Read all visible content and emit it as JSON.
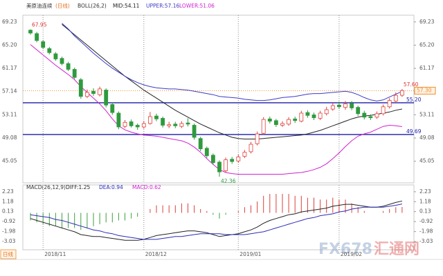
{
  "chart_data": [
    {
      "type": "candlestick",
      "title": "美原油连续",
      "period": "(日线)",
      "indicator": "BOLL(26,2)",
      "legend_labels": [
        "MID:54.11",
        "UPPER:57.16",
        "LOWER:51.06"
      ],
      "categories": [
        null,
        null,
        "2018/11",
        null,
        null,
        null,
        null,
        null,
        null,
        null,
        null,
        null,
        null,
        null,
        null,
        null,
        null,
        null,
        "2018/12",
        null,
        null,
        null,
        null,
        null,
        null,
        null,
        null,
        null,
        null,
        null,
        null,
        null,
        null,
        "2019/01",
        null,
        null,
        null,
        null,
        null,
        null,
        null,
        null,
        null,
        null,
        null,
        null,
        null,
        null,
        null,
        "2019/02",
        null,
        null,
        null,
        null,
        null,
        null,
        null,
        null,
        null,
        null
      ],
      "open": [
        67.8,
        67.2,
        65.8,
        64.6,
        63.7,
        62.9,
        62.0,
        61.0,
        59.2,
        56.3,
        57.2,
        56.6,
        57.4,
        54.9,
        53.4,
        51.1,
        51.9,
        51.3,
        51.0,
        51.6,
        52.9,
        52.5,
        51.2,
        51.5,
        51.1,
        51.7,
        51.3,
        49.0,
        47.3,
        46.1,
        44.9,
        43.4,
        45.4,
        45.1,
        45.9,
        46.7,
        48.1,
        49.9,
        52.4,
        52.1,
        51.3,
        51.5,
        52.4,
        52.0,
        53.5,
        53.1,
        52.5,
        53.3,
        54.1,
        54.8,
        54.4,
        55.1,
        54.4,
        53.4,
        52.8,
        52.7,
        53.3,
        54.5,
        55.5,
        56.5
      ],
      "high": [
        67.95,
        67.5,
        66.1,
        64.9,
        64.0,
        63.2,
        62.3,
        61.3,
        59.5,
        57.5,
        57.7,
        58.0,
        57.7,
        55.3,
        53.7,
        52.2,
        52.3,
        51.6,
        52.0,
        53.6,
        53.3,
        52.8,
        51.9,
        51.9,
        52.0,
        52.5,
        51.6,
        49.3,
        47.6,
        46.4,
        45.2,
        45.7,
        45.8,
        46.2,
        47.0,
        48.4,
        50.2,
        52.7,
        52.8,
        52.4,
        52.0,
        52.7,
        52.8,
        53.8,
        53.9,
        53.5,
        53.8,
        54.5,
        55.2,
        55.4,
        55.5,
        55.5,
        54.7,
        53.8,
        53.2,
        53.7,
        54.9,
        56.0,
        57.0,
        57.6
      ],
      "low": [
        67.0,
        65.7,
        64.5,
        63.6,
        62.5,
        61.7,
        60.7,
        59.3,
        55.9,
        56.0,
        56.4,
        56.3,
        54.4,
        53.1,
        50.6,
        50.8,
        50.9,
        50.5,
        50.7,
        51.4,
        52.0,
        50.9,
        50.8,
        50.8,
        50.8,
        51.1,
        48.8,
        46.8,
        45.6,
        44.4,
        42.36,
        43.1,
        44.6,
        44.8,
        45.6,
        46.4,
        47.8,
        49.6,
        51.6,
        51.0,
        51.0,
        51.2,
        51.7,
        51.8,
        52.6,
        52.2,
        52.2,
        53.0,
        53.8,
        54.1,
        54.0,
        53.9,
        52.9,
        52.3,
        52.2,
        52.4,
        53.0,
        54.2,
        55.2,
        56.2
      ],
      "close": [
        67.3,
        66.0,
        64.8,
        63.9,
        62.8,
        62.0,
        61.0,
        59.6,
        56.3,
        57.0,
        56.8,
        57.6,
        54.8,
        53.5,
        51.0,
        51.8,
        51.2,
        51.0,
        51.6,
        52.8,
        52.4,
        51.3,
        51.4,
        51.2,
        51.6,
        51.5,
        49.2,
        47.2,
        46.0,
        44.8,
        43.2,
        45.3,
        45.0,
        45.8,
        46.6,
        48.0,
        49.8,
        52.3,
        52.0,
        51.4,
        51.6,
        52.3,
        52.1,
        53.4,
        53.0,
        52.6,
        53.4,
        54.0,
        54.7,
        54.5,
        55.0,
        54.3,
        53.3,
        52.7,
        52.6,
        53.3,
        54.5,
        55.6,
        56.5,
        57.3
      ],
      "up_color": "#e0403a",
      "down_color": "#2f9a3e",
      "series": [
        {
          "color": "#222222",
          "values": [
            null,
            null,
            null,
            null,
            null,
            68.8,
            67.9,
            67.0,
            66.1,
            65.2,
            64.3,
            63.4,
            62.5,
            61.6,
            60.7,
            59.8,
            59.0,
            58.2,
            57.4,
            56.7,
            56.0,
            55.3,
            54.6,
            53.9,
            53.3,
            52.7,
            52.1,
            51.5,
            51.0,
            50.5,
            50.0,
            49.6,
            49.2,
            49.0,
            48.9,
            48.9,
            48.9,
            49.0,
            49.1,
            49.2,
            49.3,
            49.4,
            49.5,
            49.6,
            49.8,
            50.1,
            50.4,
            50.8,
            51.2,
            51.6,
            52.0,
            52.4,
            52.7,
            52.9,
            53.0,
            53.2,
            53.4,
            53.6,
            53.9,
            54.11
          ]
        },
        {
          "color": "#3a3ac8",
          "values": [
            null,
            null,
            null,
            null,
            null,
            69.0,
            68.0,
            66.8,
            65.8,
            64.8,
            63.8,
            62.9,
            62.0,
            61.2,
            60.5,
            59.8,
            59.2,
            58.7,
            58.3,
            58.0,
            57.8,
            57.7,
            57.6,
            57.6,
            57.5,
            57.4,
            57.2,
            57.0,
            56.8,
            56.6,
            56.3,
            56.2,
            56.1,
            56.0,
            55.8,
            55.7,
            55.6,
            55.6,
            55.7,
            55.9,
            56.1,
            56.2,
            56.3,
            56.5,
            56.7,
            56.8,
            56.8,
            56.9,
            57.0,
            57.1,
            57.2,
            57.0,
            56.6,
            56.1,
            55.7,
            55.5,
            55.7,
            56.2,
            56.7,
            57.16
          ]
        },
        {
          "color": "#d020d0",
          "values": [
            65.3,
            64.4,
            63.5,
            62.6,
            61.7,
            60.9,
            60.1,
            59.2,
            58.0,
            57.0,
            56.0,
            55.0,
            53.8,
            52.4,
            51.2,
            50.5,
            50.1,
            49.8,
            49.6,
            49.5,
            49.4,
            49.2,
            49.0,
            48.8,
            48.6,
            48.2,
            47.5,
            46.6,
            45.5,
            44.5,
            43.6,
            43.1,
            42.9,
            42.8,
            42.8,
            42.8,
            42.8,
            42.8,
            42.8,
            42.8,
            42.8,
            42.9,
            43.0,
            43.1,
            43.3,
            43.6,
            44.0,
            44.6,
            45.5,
            46.5,
            47.6,
            48.6,
            49.4,
            49.8,
            50.1,
            50.6,
            51.1,
            51.3,
            51.2,
            51.06
          ]
        }
      ],
      "ylim": [
        41.3,
        70.4
      ],
      "yticks": [
        69.23,
        {
          "value": 65.2,
          "label": "65.20"
        },
        61.17,
        57.14,
        53.11,
        49.08,
        45.05
      ],
      "hlines": [
        {
          "value": 55.2,
          "label": "55.20",
          "color": "#1a1aa8"
        },
        {
          "value": 49.69,
          "label": "49.69",
          "color": "#1a1aa8"
        }
      ],
      "last_price": {
        "value": 57.3,
        "label": "57.30",
        "color": "#f08a24"
      },
      "annotations": [
        {
          "value": 67.95,
          "label": "67.95",
          "color": "#e03030"
        },
        {
          "value": 42.36,
          "label": "42.36",
          "color": "#2f9a3e"
        },
        {
          "value": 57.6,
          "label": "57.60",
          "color": "#e03030"
        }
      ]
    },
    {
      "type": "macd",
      "indicator": "MACD(26,12,9)",
      "legend_labels": [
        "DIFF:1.25",
        "DEA:0.94",
        "MACD:0.62"
      ],
      "series": [
        {
          "color": "#222222",
          "values": [
            -0.6,
            -0.8,
            -1.0,
            -1.2,
            -1.4,
            -1.6,
            -1.8,
            -2.0,
            -2.3,
            -2.4,
            -2.5,
            -2.5,
            -2.6,
            -2.7,
            -2.8,
            -2.9,
            -2.9,
            -2.9,
            -2.8,
            -2.6,
            -2.4,
            -2.3,
            -2.2,
            -2.1,
            -2.0,
            -1.9,
            -1.9,
            -2.0,
            -2.1,
            -2.3,
            -2.5,
            -2.4,
            -2.3,
            -2.2,
            -2.0,
            -1.8,
            -1.5,
            -1.1,
            -0.8,
            -0.6,
            -0.4,
            -0.2,
            -0.1,
            0.1,
            0.2,
            0.3,
            0.4,
            0.5,
            0.7,
            0.8,
            0.9,
            0.9,
            0.8,
            0.7,
            0.6,
            0.6,
            0.7,
            0.9,
            1.1,
            1.25
          ]
        },
        {
          "color": "#2a2ab8",
          "values": [
            -0.2,
            -0.3,
            -0.4,
            -0.5,
            -0.7,
            -0.8,
            -1.0,
            -1.2,
            -1.4,
            -1.6,
            -1.8,
            -1.9,
            -2.1,
            -2.2,
            -2.4,
            -2.5,
            -2.6,
            -2.7,
            -2.8,
            -2.8,
            -2.8,
            -2.7,
            -2.6,
            -2.5,
            -2.5,
            -2.4,
            -2.3,
            -2.2,
            -2.2,
            -2.2,
            -2.2,
            -2.3,
            -2.3,
            -2.3,
            -2.3,
            -2.2,
            -2.1,
            -2.0,
            -1.8,
            -1.6,
            -1.4,
            -1.2,
            -1.0,
            -0.8,
            -0.6,
            -0.5,
            -0.3,
            -0.2,
            -0.1,
            0.1,
            0.2,
            0.4,
            0.5,
            0.6,
            0.6,
            0.6,
            0.6,
            0.7,
            0.8,
            0.94
          ]
        }
      ],
      "histogram": {
        "up_color": "#d8403a",
        "down_color": "#3aa03a",
        "values": [
          -0.8,
          -1.0,
          -1.2,
          -1.4,
          -1.4,
          -1.6,
          -1.6,
          -1.6,
          -1.8,
          -1.6,
          -1.4,
          -1.2,
          -1.0,
          -1.0,
          -0.8,
          -0.8,
          -0.6,
          -0.4,
          0.0,
          0.4,
          0.8,
          0.8,
          0.8,
          0.8,
          1.0,
          1.0,
          0.8,
          0.4,
          0.2,
          -0.2,
          -0.6,
          -0.2,
          0.0,
          0.2,
          0.6,
          0.8,
          1.2,
          1.8,
          2.0,
          2.0,
          2.0,
          2.0,
          1.8,
          1.8,
          1.6,
          1.6,
          1.4,
          1.4,
          1.6,
          1.4,
          1.4,
          1.0,
          0.6,
          0.2,
          0.0,
          0.0,
          0.2,
          0.4,
          0.6,
          0.62
        ]
      },
      "ylim": [
        -3.9,
        2.95
      ],
      "yticks": [
        2.23,
        1.18,
        0.13,
        -0.92,
        -1.98,
        -3.03
      ]
    }
  ],
  "tab": "日线",
  "watermark": [
    "FX678",
    "汇通网"
  ]
}
